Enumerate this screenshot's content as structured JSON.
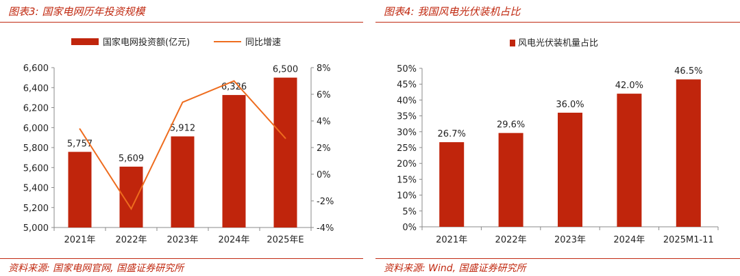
{
  "left": {
    "heading": "图表3:  国家电网历年投资规模",
    "source": "资料来源:  国家电网官网,  国盛证券研究所",
    "colors": {
      "bar": "#c0250c",
      "line": "#ee6c1e",
      "axis": "#888888"
    },
    "chart_data": {
      "type": "bar",
      "categories": [
        "2021年",
        "2022年",
        "2023年",
        "2024年",
        "2025年E"
      ],
      "series": [
        {
          "name": "国家电网投资额(亿元)",
          "type": "bar",
          "axis": "left",
          "values": [
            5757,
            5609,
            5912,
            6326,
            6500
          ],
          "labels": [
            "5,757",
            "5,609",
            "5,912",
            "6,326",
            "6,500"
          ]
        },
        {
          "name": "同比增速",
          "type": "line",
          "axis": "right",
          "values": [
            3.4,
            -2.6,
            5.4,
            7.0,
            2.7
          ]
        }
      ],
      "y_left": {
        "min": 5000,
        "max": 6600,
        "step": 200,
        "ticks": [
          "5,000",
          "5,200",
          "5,400",
          "5,600",
          "5,800",
          "6,000",
          "6,200",
          "6,400",
          "6,600"
        ]
      },
      "y_right": {
        "min": -4,
        "max": 8,
        "step": 2,
        "ticks": [
          "-4%",
          "-2%",
          "0%",
          "2%",
          "4%",
          "6%",
          "8%"
        ]
      },
      "legend_position": "top-center",
      "grid": false
    }
  },
  "right": {
    "heading": "图表4:  我国风电光伏装机占比",
    "source": "资料来源:  Wind,  国盛证券研究所",
    "colors": {
      "bar": "#c0250c",
      "axis": "#888888"
    },
    "chart_data": {
      "type": "bar",
      "categories": [
        "2021年",
        "2022年",
        "2023年",
        "2024年",
        "2025M1-11"
      ],
      "series": [
        {
          "name": "风电光伏装机量占比",
          "type": "bar",
          "values": [
            26.7,
            29.6,
            36.0,
            42.0,
            46.5
          ],
          "labels": [
            "26.7%",
            "29.6%",
            "36.0%",
            "42.0%",
            "46.5%"
          ]
        }
      ],
      "y": {
        "min": 0,
        "max": 50,
        "step": 5,
        "ticks": [
          "0%",
          "5%",
          "10%",
          "15%",
          "20%",
          "25%",
          "30%",
          "35%",
          "40%",
          "45%",
          "50%"
        ]
      },
      "legend_position": "top-center",
      "grid": false
    }
  }
}
